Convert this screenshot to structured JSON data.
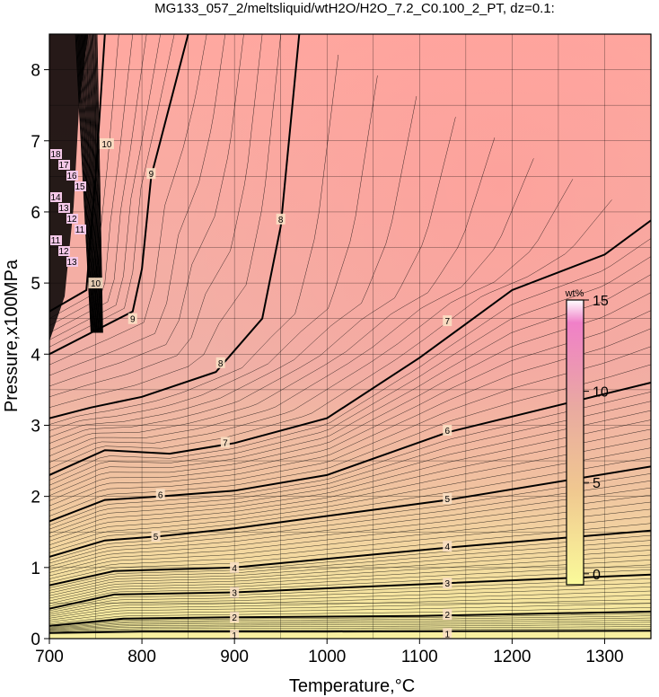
{
  "chart_data": {
    "type": "heatmap",
    "title": "MG133_057_2/meltsliquid/wtH2O/H2O_7.2_C0.100_2_PT, dz=0.1:",
    "xlabel": "Temperature,°C",
    "ylabel": "Pressure,x100MPa",
    "xlim": [
      700,
      1350
    ],
    "ylim": [
      0,
      8.5
    ],
    "x_ticks": [
      700,
      800,
      900,
      1000,
      1100,
      1200,
      1300
    ],
    "y_ticks": [
      0,
      1,
      2,
      3,
      4,
      5,
      6,
      7,
      8
    ],
    "grid": true,
    "colorbar": {
      "unit": "wt%",
      "range": [
        -0.6,
        15
      ],
      "ticks": [
        0,
        5,
        10,
        15
      ],
      "colors": [
        "#fafa9a",
        "#f0c890",
        "#e9aaa0",
        "#f080c8",
        "#ffffff"
      ]
    },
    "contour_interval": 0.1,
    "labeled_contours": [
      {
        "level": 1,
        "points": [
          [
            700,
            0.08
          ],
          [
            800,
            0.1
          ],
          [
            1000,
            0.1
          ],
          [
            1350,
            0.11
          ]
        ]
      },
      {
        "level": 2,
        "points": [
          [
            700,
            0.18
          ],
          [
            780,
            0.28
          ],
          [
            900,
            0.3
          ],
          [
            1100,
            0.32
          ],
          [
            1350,
            0.38
          ]
        ]
      },
      {
        "level": 3,
        "points": [
          [
            700,
            0.42
          ],
          [
            770,
            0.62
          ],
          [
            900,
            0.65
          ],
          [
            1130,
            0.78
          ],
          [
            1350,
            0.9
          ]
        ]
      },
      {
        "level": 4,
        "points": [
          [
            700,
            0.75
          ],
          [
            770,
            0.95
          ],
          [
            900,
            1.0
          ],
          [
            1130,
            1.28
          ],
          [
            1350,
            1.52
          ]
        ]
      },
      {
        "level": 5,
        "points": [
          [
            700,
            1.15
          ],
          [
            760,
            1.38
          ],
          [
            820,
            1.44
          ],
          [
            900,
            1.55
          ],
          [
            1130,
            1.95
          ],
          [
            1350,
            2.42
          ]
        ]
      },
      {
        "level": 6,
        "points": [
          [
            700,
            1.65
          ],
          [
            760,
            1.95
          ],
          [
            820,
            2.0
          ],
          [
            900,
            2.08
          ],
          [
            1000,
            2.3
          ],
          [
            1130,
            2.9
          ],
          [
            1350,
            3.6
          ]
        ]
      },
      {
        "level": 7,
        "points": [
          [
            700,
            2.3
          ],
          [
            760,
            2.65
          ],
          [
            830,
            2.6
          ],
          [
            900,
            2.75
          ],
          [
            1000,
            3.1
          ],
          [
            1100,
            3.95
          ],
          [
            1200,
            4.9
          ],
          [
            1300,
            5.4
          ],
          [
            1350,
            5.88
          ]
        ]
      },
      {
        "level": 8,
        "points": [
          [
            700,
            3.1
          ],
          [
            745,
            3.25
          ],
          [
            800,
            3.4
          ],
          [
            880,
            3.75
          ],
          [
            930,
            4.5
          ],
          [
            950,
            5.8
          ],
          [
            970,
            8.5
          ]
        ]
      },
      {
        "level": 9,
        "points": [
          [
            700,
            4.0
          ],
          [
            760,
            4.4
          ],
          [
            790,
            4.6
          ],
          [
            800,
            5.2
          ],
          [
            810,
            6.5
          ],
          [
            850,
            8.5
          ]
        ]
      },
      {
        "level": 10,
        "points": [
          [
            700,
            4.6
          ],
          [
            740,
            4.9
          ],
          [
            750,
            6.5
          ],
          [
            760,
            8.5
          ]
        ]
      }
    ],
    "contour_labels": [
      {
        "text": "1",
        "x": 900,
        "y": 0.05
      },
      {
        "text": "1",
        "x": 1130,
        "y": 0.07
      },
      {
        "text": "2",
        "x": 900,
        "y": 0.3
      },
      {
        "text": "2",
        "x": 1130,
        "y": 0.34
      },
      {
        "text": "3",
        "x": 900,
        "y": 0.65
      },
      {
        "text": "3",
        "x": 1130,
        "y": 0.78
      },
      {
        "text": "4",
        "x": 900,
        "y": 1.0
      },
      {
        "text": "4",
        "x": 1130,
        "y": 1.3
      },
      {
        "text": "5",
        "x": 815,
        "y": 1.44
      },
      {
        "text": "5",
        "x": 1130,
        "y": 1.97
      },
      {
        "text": "6",
        "x": 820,
        "y": 2.03
      },
      {
        "text": "6",
        "x": 1130,
        "y": 2.93
      },
      {
        "text": "7",
        "x": 890,
        "y": 2.76
      },
      {
        "text": "7",
        "x": 1130,
        "y": 4.47
      },
      {
        "text": "8",
        "x": 885,
        "y": 3.88
      },
      {
        "text": "8",
        "x": 950,
        "y": 5.9
      },
      {
        "text": "9",
        "x": 790,
        "y": 4.5
      },
      {
        "text": "9",
        "x": 810,
        "y": 6.54
      },
      {
        "text": "10",
        "x": 750,
        "y": 5.0
      },
      {
        "text": "10",
        "x": 762,
        "y": 6.96
      }
    ],
    "edge_labels": [
      "18",
      "17",
      "16",
      "15",
      "14",
      "13",
      "12",
      "11",
      "11",
      "12",
      "13"
    ]
  }
}
